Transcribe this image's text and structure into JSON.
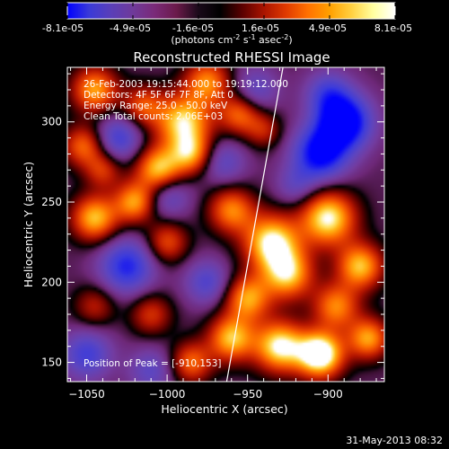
{
  "colorbar": {
    "ticks": [
      "-8.1e-05",
      "-4.9e-05",
      "-1.6e-05",
      "1.6e-05",
      "4.9e-05",
      "8.1e-05"
    ],
    "unit_main": "(photons cm",
    "unit_sup1": "-2",
    "unit_mid": " s",
    "unit_sup2": "-1",
    "unit_end": " asec",
    "unit_sup3": "-2",
    "unit_close": ")",
    "range": [
      -8.1e-05,
      8.1e-05
    ],
    "colors": [
      "#0000ff",
      "#3a3ad8",
      "#5a3fb8",
      "#6f3a9a",
      "#7a2a78",
      "#6a1a4a",
      "#1a0a1a",
      "#000000",
      "#5a0000",
      "#aa1400",
      "#e03a00",
      "#ff7000",
      "#ffa000",
      "#ffd040",
      "#ffffa0",
      "#ffffff"
    ]
  },
  "annotations": {
    "time": "26-Feb-2003 19:15:44.000 to 19:19:12.000",
    "detectors": "Detectors: 4F 5F 6F 7F 8F, Att 0",
    "energy": "Energy Range: 25.0 - 50.0 keV",
    "clean": "Clean     Total counts: 2.06E+03",
    "peak": "Position of Peak = [-910,153]"
  },
  "footer": {
    "date": "31-May-2013 08:32"
  },
  "chart_data": {
    "type": "heatmap",
    "title": "Reconstructed RHESSI Image",
    "xlabel": "Heliocentric X (arcsec)",
    "ylabel": "Heliocentric Y (arcsec)",
    "xlim": [
      -1062,
      -865
    ],
    "ylim": [
      138,
      334
    ],
    "x_ticks": [
      -1050,
      -1000,
      -950,
      -900
    ],
    "y_ticks": [
      150,
      200,
      250,
      300
    ],
    "x_tick_labels": [
      "−1050",
      "−1000",
      "−950",
      "−900"
    ],
    "y_tick_labels": [
      "150",
      "200",
      "250",
      "300"
    ],
    "peak": {
      "x": -910,
      "y": 153
    },
    "limb": [
      [
        -963,
        138
      ],
      [
        -928,
        334
      ]
    ],
    "blobs": [
      {
        "x": -1045,
        "y": 320,
        "v": 1.0,
        "s": 10
      },
      {
        "x": -1015,
        "y": 310,
        "v": 0.7,
        "s": 9
      },
      {
        "x": -990,
        "y": 300,
        "v": 1.2,
        "s": 12
      },
      {
        "x": -975,
        "y": 325,
        "v": 0.9,
        "s": 10
      },
      {
        "x": -955,
        "y": 305,
        "v": 0.8,
        "s": 9
      },
      {
        "x": -940,
        "y": 295,
        "v": 0.5,
        "s": 8
      },
      {
        "x": -1052,
        "y": 285,
        "v": 0.8,
        "s": 9
      },
      {
        "x": -1040,
        "y": 270,
        "v": 0.6,
        "s": 8
      },
      {
        "x": -1005,
        "y": 270,
        "v": 1.2,
        "s": 10
      },
      {
        "x": -985,
        "y": 280,
        "v": 0.9,
        "s": 9
      },
      {
        "x": -1020,
        "y": 250,
        "v": 1.0,
        "s": 9
      },
      {
        "x": -960,
        "y": 245,
        "v": 0.9,
        "s": 10
      },
      {
        "x": -1045,
        "y": 240,
        "v": 1.1,
        "s": 10
      },
      {
        "x": -1000,
        "y": 225,
        "v": 0.7,
        "s": 9
      },
      {
        "x": -935,
        "y": 225,
        "v": 1.3,
        "s": 12
      },
      {
        "x": -900,
        "y": 240,
        "v": 1.3,
        "s": 12
      },
      {
        "x": -925,
        "y": 205,
        "v": 1.1,
        "s": 11
      },
      {
        "x": -880,
        "y": 210,
        "v": 1.1,
        "s": 10
      },
      {
        "x": -950,
        "y": 190,
        "v": 1.0,
        "s": 10
      },
      {
        "x": -895,
        "y": 185,
        "v": 0.9,
        "s": 10
      },
      {
        "x": -960,
        "y": 165,
        "v": 1.1,
        "s": 10
      },
      {
        "x": -930,
        "y": 160,
        "v": 1.3,
        "s": 11
      },
      {
        "x": -905,
        "y": 155,
        "v": 1.6,
        "s": 10
      },
      {
        "x": -875,
        "y": 165,
        "v": 1.0,
        "s": 9
      },
      {
        "x": -985,
        "y": 150,
        "v": 0.8,
        "s": 9
      },
      {
        "x": -1010,
        "y": 180,
        "v": 0.6,
        "s": 9
      },
      {
        "x": -1045,
        "y": 185,
        "v": 0.5,
        "s": 9
      },
      {
        "x": -890,
        "y": 300,
        "v": -1.3,
        "s": 12
      },
      {
        "x": -905,
        "y": 280,
        "v": -1.1,
        "s": 12
      },
      {
        "x": -900,
        "y": 318,
        "v": -0.6,
        "s": 10
      },
      {
        "x": -1030,
        "y": 290,
        "v": -0.7,
        "s": 10
      },
      {
        "x": -1000,
        "y": 255,
        "v": -0.6,
        "s": 10
      },
      {
        "x": -1025,
        "y": 210,
        "v": -0.9,
        "s": 12
      },
      {
        "x": -1050,
        "y": 155,
        "v": -0.7,
        "s": 11
      },
      {
        "x": -975,
        "y": 200,
        "v": -0.6,
        "s": 10
      },
      {
        "x": -1010,
        "y": 145,
        "v": -0.5,
        "s": 10
      },
      {
        "x": -965,
        "y": 275,
        "v": -0.5,
        "s": 10
      },
      {
        "x": -920,
        "y": 260,
        "v": -0.4,
        "s": 9
      },
      {
        "x": -945,
        "y": 320,
        "v": -0.5,
        "s": 10
      }
    ]
  }
}
